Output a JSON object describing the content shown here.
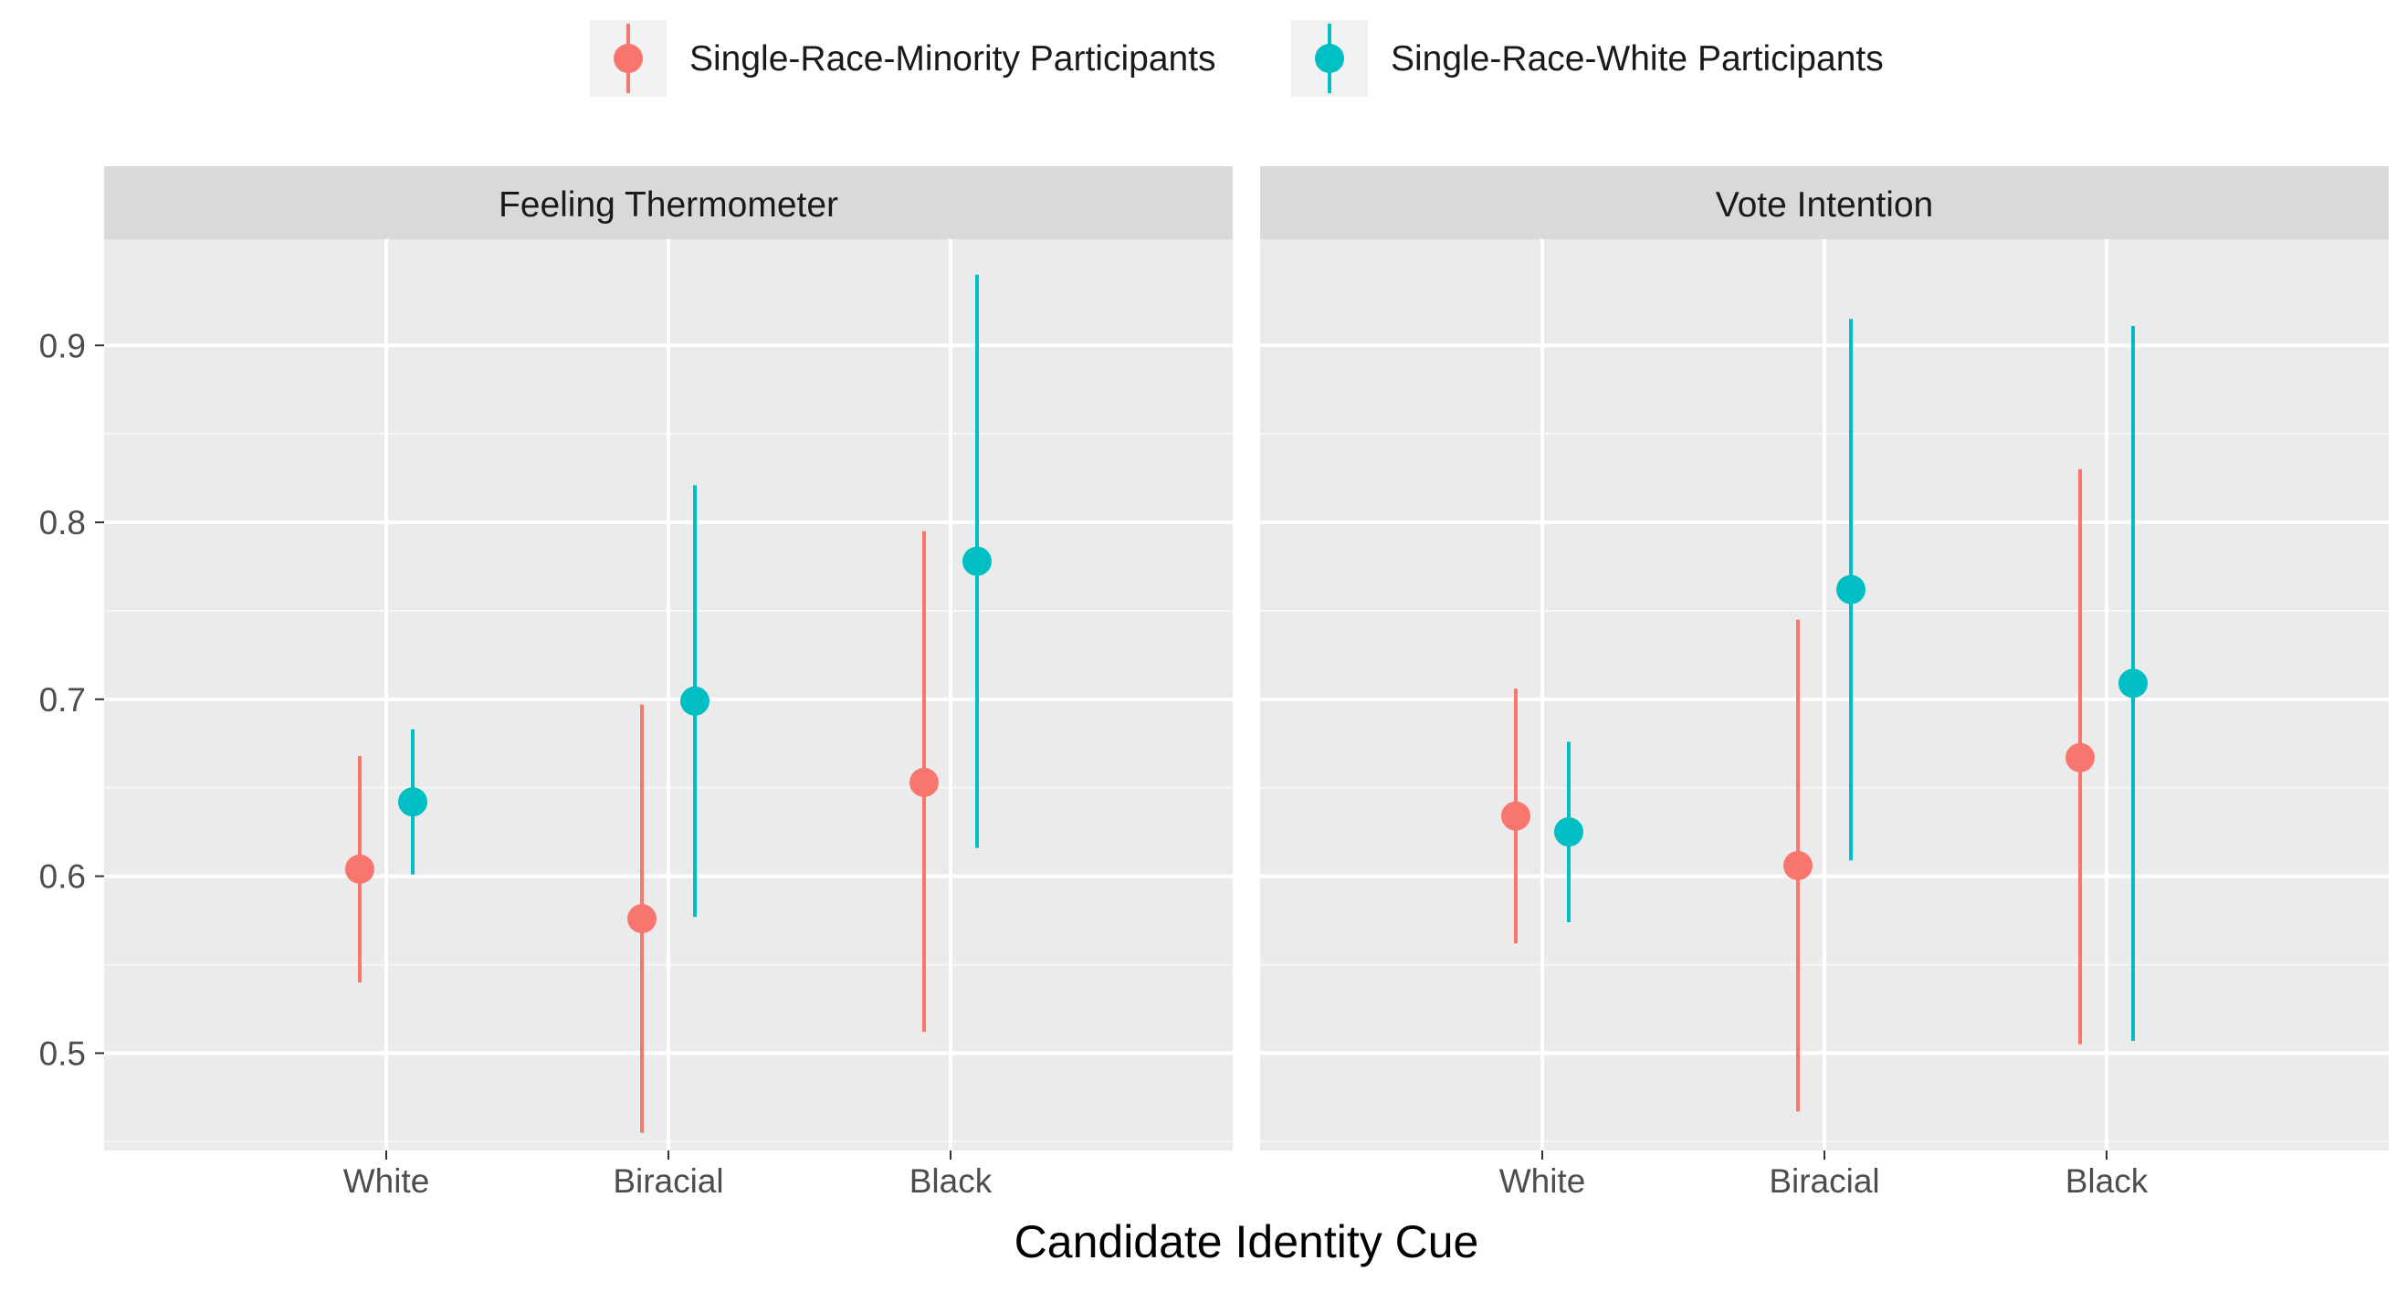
{
  "chart_data": {
    "type": "pointrange",
    "xlabel": "Candidate Identity Cue",
    "ylabel": "",
    "categories": [
      "White",
      "Biracial",
      "Black"
    ],
    "ylim": [
      0.445,
      0.96
    ],
    "yticks": [
      0.5,
      0.6,
      0.7,
      0.8,
      0.9
    ],
    "ytick_labels": [
      "0.5",
      "0.6",
      "0.7",
      "0.8",
      "0.9"
    ],
    "grid": true,
    "legend_position": "top",
    "series": [
      {
        "name": "Single-Race-Minority Participants",
        "color": "#F8766D"
      },
      {
        "name": "Single-Race-White Participants",
        "color": "#00BFC4"
      }
    ],
    "panels": [
      {
        "title": "Feeling Thermometer",
        "data": [
          {
            "est": [
              0.604,
              0.576,
              0.653
            ],
            "lo": [
              0.54,
              0.455,
              0.512
            ],
            "hi": [
              0.668,
              0.697,
              0.795
            ]
          },
          {
            "est": [
              0.642,
              0.699,
              0.778
            ],
            "lo": [
              0.601,
              0.577,
              0.616
            ],
            "hi": [
              0.683,
              0.821,
              0.94
            ]
          }
        ]
      },
      {
        "title": "Vote Intention",
        "data": [
          {
            "est": [
              0.634,
              0.606,
              0.667
            ],
            "lo": [
              0.562,
              0.467,
              0.505
            ],
            "hi": [
              0.706,
              0.745,
              0.83
            ]
          },
          {
            "est": [
              0.625,
              0.762,
              0.709
            ],
            "lo": [
              0.574,
              0.609,
              0.507
            ],
            "hi": [
              0.676,
              0.915,
              0.911
            ]
          }
        ]
      }
    ]
  }
}
